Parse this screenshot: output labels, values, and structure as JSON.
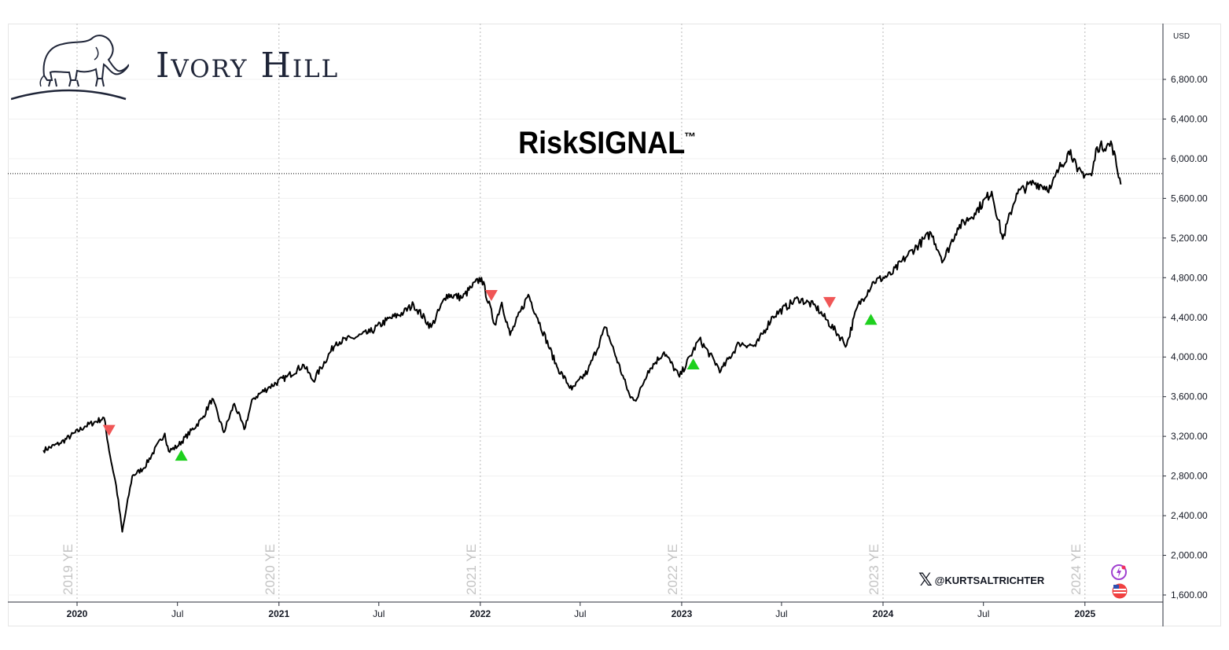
{
  "brand": {
    "name": "Ivory Hill"
  },
  "title": "RiskSIGNAL",
  "title_mark": "™",
  "currency": "USD",
  "handle": "@KURTSALTRICHTER",
  "icons": [
    "elephant-logo",
    "x-logo-icon",
    "lightning-icon",
    "us-flag-icon"
  ],
  "colors": {
    "line": "#000000",
    "sell": "#f05656",
    "buy": "#1ed01e",
    "grid": "#c8c8c8",
    "brand": "#1f2538"
  },
  "chart_data": {
    "type": "line",
    "title": "RiskSIGNAL™",
    "ylim": [
      1600,
      6800
    ],
    "y_ticks": [
      "6,800.00",
      "6,400.00",
      "6,000.00",
      "5,600.00",
      "5,200.00",
      "4,800.00",
      "4,400.00",
      "4,000.00",
      "3,600.00",
      "3,200.00",
      "2,800.00",
      "2,400.00",
      "2,000.00",
      "1,600.00"
    ],
    "x_ticks": [
      "2020",
      "Jul",
      "2021",
      "Jul",
      "2022",
      "Jul",
      "2023",
      "Jul",
      "2024",
      "Jul",
      "2025"
    ],
    "year_end_labels": [
      "2019 YE",
      "2020 YE",
      "2021 YE",
      "2022 YE",
      "2023 YE",
      "2024 YE"
    ],
    "current_level": 5850,
    "series": [
      {
        "values_x": [
          "2019-11-01",
          "2019-12-01",
          "2020-01-15",
          "2020-02-19",
          "2020-03-01",
          "2020-03-12",
          "2020-03-23",
          "2020-04-10",
          "2020-05-01",
          "2020-06-08",
          "2020-06-15",
          "2020-07-01",
          "2020-08-15",
          "2020-09-02",
          "2020-09-23",
          "2020-10-12",
          "2020-10-30",
          "2020-11-15",
          "2020-12-15",
          "2021-01-15",
          "2021-02-15",
          "2021-03-04",
          "2021-04-15",
          "2021-05-15",
          "2021-06-15",
          "2021-07-15",
          "2021-08-15",
          "2021-09-02",
          "2021-10-04",
          "2021-11-01",
          "2021-11-30",
          "2021-12-15",
          "2022-01-03",
          "2022-01-27",
          "2022-02-09",
          "2022-02-24",
          "2022-03-29",
          "2022-04-15",
          "2022-05-20",
          "2022-06-16",
          "2022-07-15",
          "2022-08-16",
          "2022-09-30",
          "2022-10-12",
          "2022-11-01",
          "2022-11-30",
          "2022-12-28",
          "2023-02-02",
          "2023-03-13",
          "2023-04-15",
          "2023-05-15",
          "2023-06-15",
          "2023-07-31",
          "2023-09-01",
          "2023-10-27",
          "2023-11-15",
          "2023-12-15",
          "2024-01-15",
          "2024-02-15",
          "2024-03-28",
          "2024-04-19",
          "2024-05-15",
          "2024-06-15",
          "2024-07-16",
          "2024-08-05",
          "2024-08-30",
          "2024-09-30",
          "2024-10-31",
          "2024-11-15",
          "2024-12-06",
          "2024-12-18",
          "2025-01-13",
          "2025-01-23",
          "2025-02-19",
          "2025-03-07"
        ],
        "values": [
          3060,
          3130,
          3300,
          3386,
          3000,
          2700,
          2237,
          2800,
          2880,
          3230,
          3050,
          3100,
          3380,
          3580,
          3240,
          3530,
          3270,
          3580,
          3700,
          3800,
          3920,
          3760,
          4150,
          4190,
          4250,
          4370,
          4450,
          4530,
          4300,
          4630,
          4600,
          4700,
          4800,
          4330,
          4550,
          4220,
          4630,
          4390,
          3900,
          3670,
          3860,
          4300,
          3590,
          3580,
          3860,
          4050,
          3800,
          4180,
          3860,
          4140,
          4110,
          4410,
          4590,
          4510,
          4120,
          4500,
          4760,
          4830,
          5030,
          5250,
          4970,
          5300,
          5450,
          5670,
          5190,
          5650,
          5760,
          5700,
          5900,
          6090,
          5870,
          5830,
          6118,
          6140,
          5740
        ]
      }
    ],
    "signals": [
      {
        "type": "sell",
        "date": "2020-02-28",
        "value": 3260
      },
      {
        "type": "buy",
        "date": "2020-07-08",
        "value": 3010
      },
      {
        "type": "sell",
        "date": "2022-01-21",
        "value": 4620
      },
      {
        "type": "buy",
        "date": "2023-01-22",
        "value": 3930
      },
      {
        "type": "sell",
        "date": "2023-09-26",
        "value": 4550
      },
      {
        "type": "buy",
        "date": "2023-12-10",
        "value": 4380
      }
    ]
  }
}
